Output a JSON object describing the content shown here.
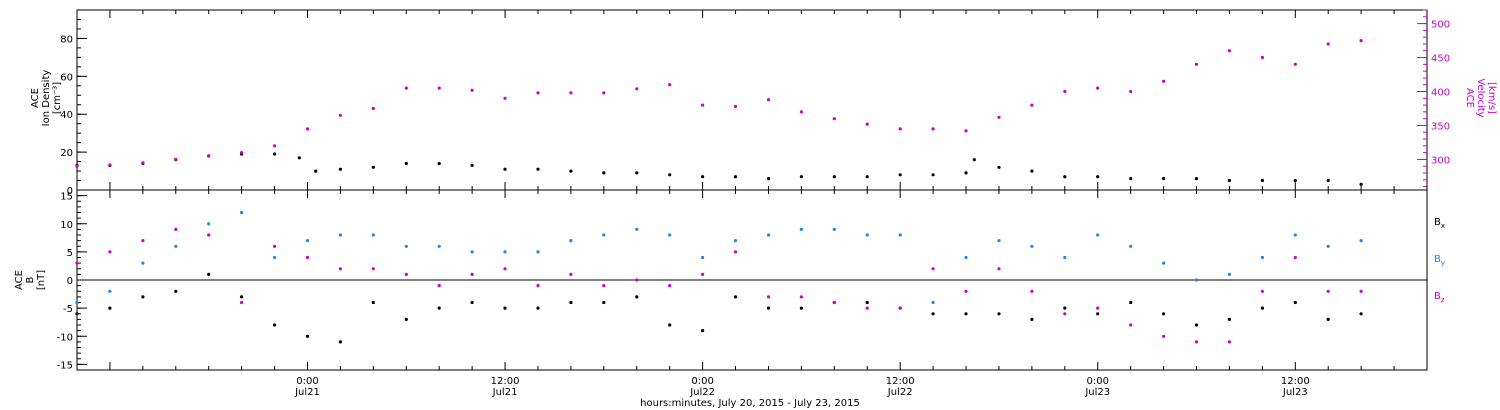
{
  "figure": {
    "xlabel": "hours:minutes, July 20, 2015 - July 23, 2015",
    "x_range_hours": [
      -14,
      68
    ],
    "x_ticks": [
      {
        "h": 0,
        "time": "0:00",
        "date": "Jul21"
      },
      {
        "h": 12,
        "time": "12:00",
        "date": "Jul21"
      },
      {
        "h": 24,
        "time": "0:00",
        "date": "Jul22"
      },
      {
        "h": 36,
        "time": "12:00",
        "date": "Jul22"
      },
      {
        "h": 48,
        "time": "0:00",
        "date": "Jul23"
      },
      {
        "h": 60,
        "time": "12:00",
        "date": "Jul23"
      }
    ]
  },
  "chart_data": [
    {
      "type": "scatter",
      "panel": "top",
      "ylabel_left": [
        "ACE",
        "Ion Density",
        "[cm⁻³]"
      ],
      "ylabel_right": [
        "ACE",
        "Velocity",
        "[km/s]"
      ],
      "ylim_left": [
        0,
        95
      ],
      "ylim_right": [
        255,
        520
      ],
      "yticks_left": [
        "0",
        "20",
        "40",
        "60",
        "80"
      ],
      "yticks_right": [
        "300",
        "350",
        "400",
        "450",
        "500"
      ],
      "series": [
        {
          "key": "density",
          "axis": "left",
          "color": "#000000",
          "x_hours": [
            -14,
            -12,
            -10,
            -8,
            -6,
            -4,
            -2,
            -0.5,
            0.5,
            2,
            4,
            6,
            8,
            10,
            12,
            14,
            16,
            18,
            20,
            22,
            24,
            26,
            28,
            30,
            32,
            34,
            36,
            38,
            40,
            40.5,
            42,
            44,
            46,
            48,
            50,
            52,
            54,
            56,
            58,
            60,
            62,
            64
          ],
          "y": [
            13,
            13,
            14,
            16,
            18,
            19,
            19,
            17,
            10,
            11,
            12,
            14,
            14,
            13,
            11,
            11,
            10,
            9,
            9,
            8,
            7,
            7,
            6,
            7,
            7,
            7,
            8,
            8,
            9,
            16,
            12,
            10,
            7,
            7,
            6,
            6,
            6,
            5,
            5,
            5,
            5,
            3
          ]
        },
        {
          "key": "velocity",
          "axis": "right",
          "color": "#cc00cc",
          "x_hours": [
            -14,
            -12,
            -10,
            -8,
            -6,
            -4,
            -2,
            0,
            2,
            4,
            6,
            8,
            10,
            12,
            14,
            16,
            18,
            20,
            22,
            24,
            26,
            28,
            30,
            32,
            34,
            36,
            38,
            40,
            42,
            44,
            46,
            48,
            50,
            52,
            54,
            56,
            58,
            60,
            62,
            64
          ],
          "y": [
            290,
            292,
            295,
            300,
            305,
            310,
            320,
            345,
            365,
            375,
            405,
            405,
            402,
            390,
            398,
            398,
            398,
            404,
            410,
            380,
            378,
            388,
            370,
            360,
            352,
            345,
            345,
            342,
            362,
            380,
            400,
            405,
            400,
            415,
            440,
            460,
            450,
            440,
            470,
            475
          ]
        }
      ]
    },
    {
      "type": "scatter",
      "panel": "bottom",
      "ylabel": [
        "ACE",
        "B",
        "[nT]"
      ],
      "ylim": [
        -16,
        16
      ],
      "yticks": [
        "-15",
        "-10",
        "-5",
        "0",
        "5",
        "10",
        "15"
      ],
      "legend": [
        {
          "key": "Bx",
          "base": "B",
          "sub": "x",
          "color": "#000000"
        },
        {
          "key": "By",
          "base": "B",
          "sub": "y",
          "color": "#1f88e5"
        },
        {
          "key": "Bz",
          "base": "B",
          "sub": "z",
          "color": "#cc00cc"
        }
      ],
      "series": [
        {
          "key": "Bx",
          "color": "#000000",
          "x_hours": [
            -14,
            -12,
            -10,
            -8,
            -6,
            -4,
            -2,
            0,
            2,
            4,
            6,
            8,
            10,
            12,
            14,
            16,
            18,
            20,
            22,
            24,
            26,
            28,
            30,
            32,
            34,
            36,
            38,
            40,
            42,
            44,
            46,
            48,
            50,
            52,
            54,
            56,
            58,
            60,
            62,
            64
          ],
          "y": [
            -6,
            -5,
            -3,
            -2,
            1,
            -3,
            -8,
            -10,
            -11,
            -4,
            -7,
            -5,
            -4,
            -5,
            -5,
            -4,
            -4,
            -3,
            -8,
            -9,
            -3,
            -5,
            -5,
            -4,
            -4,
            -5,
            -6,
            -6,
            -6,
            -7,
            -5,
            -6,
            -4,
            -6,
            -8,
            -7,
            -5,
            -4,
            -7,
            -6
          ]
        },
        {
          "key": "By",
          "color": "#1f88e5",
          "x_hours": [
            -14,
            -12,
            -10,
            -8,
            -6,
            -4,
            -2,
            0,
            2,
            4,
            6,
            8,
            10,
            12,
            14,
            16,
            18,
            20,
            22,
            24,
            26,
            28,
            30,
            32,
            34,
            36,
            38,
            40,
            42,
            44,
            46,
            48,
            50,
            52,
            54,
            56,
            58,
            60,
            62,
            64
          ],
          "y": [
            -4,
            -2,
            3,
            6,
            10,
            12,
            4,
            7,
            8,
            8,
            6,
            6,
            5,
            5,
            5,
            7,
            8,
            9,
            8,
            4,
            7,
            8,
            9,
            9,
            8,
            8,
            -4,
            4,
            7,
            6,
            4,
            8,
            6,
            3,
            0,
            1,
            4,
            8,
            6,
            7
          ]
        },
        {
          "key": "Bz",
          "color": "#cc00cc",
          "x_hours": [
            -14,
            -12,
            -10,
            -8,
            -6,
            -4,
            -2,
            0,
            2,
            4,
            6,
            8,
            10,
            12,
            14,
            16,
            18,
            20,
            22,
            24,
            26,
            28,
            30,
            32,
            34,
            36,
            38,
            40,
            42,
            44,
            46,
            48,
            50,
            52,
            54,
            56,
            58,
            60,
            62,
            64
          ],
          "y": [
            3,
            5,
            7,
            9,
            8,
            -4,
            6,
            4,
            2,
            2,
            1,
            -1,
            1,
            2,
            -1,
            1,
            -1,
            0,
            -1,
            1,
            5,
            -3,
            -3,
            -4,
            -5,
            -5,
            2,
            -2,
            2,
            -2,
            -6,
            -5,
            -8,
            -10,
            -11,
            -11,
            -2,
            4,
            -2,
            -2
          ]
        }
      ]
    }
  ]
}
